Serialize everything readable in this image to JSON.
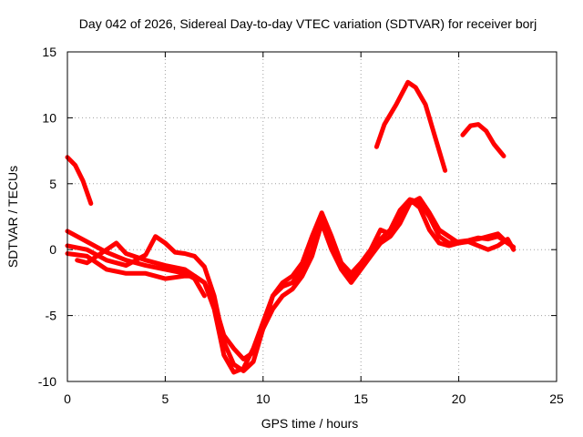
{
  "chart_data": {
    "type": "line",
    "title": "Day 042 of 2026, Sidereal Day-to-day VTEC variation (SDTVAR) for receiver borj",
    "xlabel": "GPS time / hours",
    "ylabel": "SDTVAR / TECUs",
    "xlim": [
      0,
      25
    ],
    "ylim": [
      -10,
      15
    ],
    "x_ticks": [
      0,
      5,
      10,
      15,
      20,
      25
    ],
    "y_ticks": [
      -10,
      -5,
      0,
      5,
      10,
      15
    ],
    "x_tick_labels": [
      "0",
      "5",
      "10",
      "15",
      "20",
      "25"
    ],
    "y_tick_labels": [
      "-10",
      "-5",
      "0",
      "5",
      "10",
      "15"
    ],
    "grid": true,
    "series_color": "#ff0000",
    "series": [
      {
        "name": "arc-1",
        "x": [
          0.0,
          0.4,
          0.8,
          1.2
        ],
        "y": [
          7.0,
          6.4,
          5.2,
          3.5
        ]
      },
      {
        "name": "arc-2",
        "x": [
          0.0,
          0.5,
          1.0,
          1.5,
          2.0,
          3.0,
          4.0,
          5.0,
          6.0,
          6.5,
          7.0
        ],
        "y": [
          1.4,
          1.0,
          0.6,
          0.2,
          -0.2,
          -0.8,
          -1.2,
          -1.5,
          -1.8,
          -2.2,
          -3.5
        ]
      },
      {
        "name": "arc-3",
        "x": [
          0.0,
          1.0,
          2.0,
          3.0,
          4.0,
          4.5,
          5.0,
          5.5,
          6.0,
          6.5,
          7.0,
          7.5,
          8.0,
          8.5,
          9.0,
          9.5,
          10.0,
          10.5,
          11.0,
          11.5,
          12.0,
          12.5,
          13.0,
          13.5,
          14.0,
          14.5,
          15.0,
          15.5,
          16.0,
          16.5,
          17.0,
          17.5,
          18.0,
          18.5,
          19.0,
          19.5,
          20.0,
          20.5,
          21.0,
          21.5,
          22.0,
          22.5
        ],
        "y": [
          0.3,
          0.0,
          -0.8,
          -1.2,
          -0.4,
          1.0,
          0.5,
          -0.2,
          -0.3,
          -0.5,
          -1.3,
          -3.5,
          -7.0,
          -8.7,
          -9.2,
          -8.5,
          -6.0,
          -3.5,
          -2.5,
          -2.0,
          -1.0,
          1.0,
          2.8,
          1.0,
          -1.0,
          -1.8,
          -1.0,
          0.0,
          1.5,
          1.2,
          2.5,
          3.8,
          3.6,
          2.5,
          1.0,
          0.5,
          0.6,
          0.7,
          0.9,
          0.8,
          1.0,
          0.5
        ]
      },
      {
        "name": "arc-4",
        "x": [
          0.0,
          1.0,
          2.0,
          3.0,
          4.0,
          5.0,
          6.0,
          6.5,
          7.0,
          7.5,
          8.0,
          8.5,
          9.0,
          9.5,
          10.0,
          10.5,
          11.0,
          11.5,
          12.0,
          12.5,
          13.0,
          13.5,
          14.0,
          14.5,
          15.0,
          15.5,
          16.0,
          16.5,
          17.0,
          17.5,
          18.0,
          18.5,
          19.0,
          19.5,
          20.0,
          20.5,
          21.0,
          21.5,
          22.0,
          22.5,
          22.8
        ],
        "y": [
          -0.3,
          -0.5,
          -1.5,
          -1.8,
          -1.8,
          -2.2,
          -2.0,
          -2.0,
          -2.5,
          -4.5,
          -8.0,
          -9.3,
          -9.0,
          -7.5,
          -5.5,
          -3.5,
          -2.8,
          -2.5,
          -1.5,
          0.0,
          2.5,
          0.5,
          -1.5,
          -2.2,
          -1.2,
          -0.2,
          0.8,
          1.5,
          3.0,
          3.8,
          3.2,
          1.5,
          0.5,
          0.3,
          0.5,
          0.6,
          0.3,
          0.0,
          0.3,
          0.8,
          0.0
        ]
      },
      {
        "name": "arc-5",
        "x": [
          0.5,
          1.0,
          1.5,
          2.0,
          2.5,
          3.0,
          4.0,
          5.0,
          6.0,
          7.0,
          7.5,
          8.0,
          8.5,
          9.0,
          9.5,
          10.0,
          10.5,
          11.0,
          11.5,
          12.0,
          12.5,
          13.0,
          13.5,
          14.0,
          14.5,
          15.0,
          15.5,
          16.0,
          16.5,
          17.0,
          17.5,
          18.0,
          18.5,
          19.0,
          20.0,
          21.0,
          22.0,
          22.5,
          22.8
        ],
        "y": [
          -0.8,
          -1.0,
          -0.5,
          0.0,
          0.5,
          -0.3,
          -0.8,
          -1.2,
          -1.5,
          -2.5,
          -4.0,
          -6.5,
          -7.5,
          -8.3,
          -7.8,
          -6.0,
          -4.5,
          -3.5,
          -3.0,
          -2.0,
          -0.5,
          2.0,
          0.0,
          -1.5,
          -2.5,
          -1.5,
          -0.5,
          0.5,
          1.0,
          2.0,
          3.5,
          3.9,
          2.8,
          1.5,
          0.5,
          0.8,
          1.2,
          0.5,
          0.2
        ]
      },
      {
        "name": "arc-6",
        "x": [
          15.8,
          16.2,
          16.8,
          17.4,
          17.8,
          18.3,
          18.8,
          19.3
        ],
        "y": [
          7.8,
          9.5,
          11.0,
          12.7,
          12.3,
          11.0,
          8.5,
          6.0
        ]
      },
      {
        "name": "arc-7",
        "x": [
          20.2,
          20.6,
          21.0,
          21.4,
          21.8,
          22.3
        ],
        "y": [
          8.7,
          9.4,
          9.5,
          9.0,
          8.0,
          7.1
        ]
      }
    ]
  }
}
